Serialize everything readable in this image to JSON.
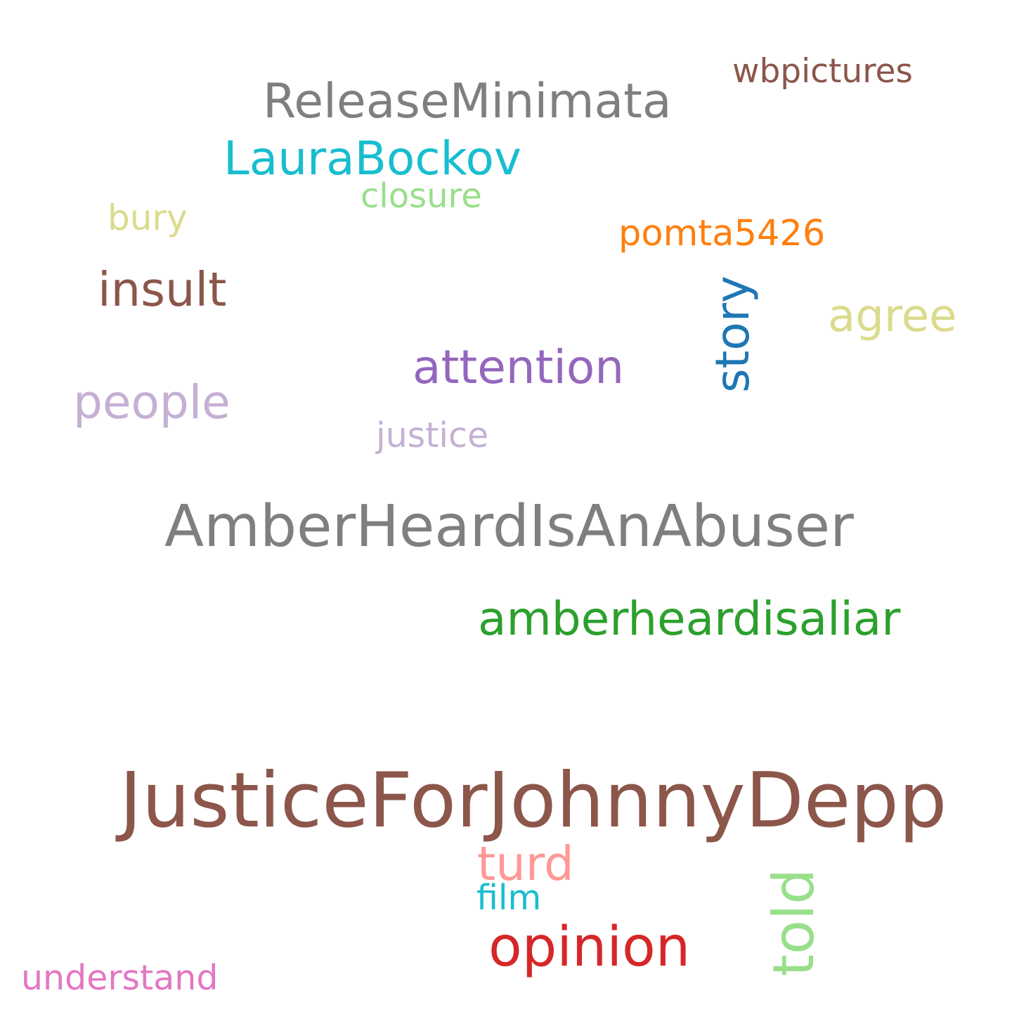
{
  "words": [
    {
      "text": "wbpictures",
      "color": "#8c564b"
    },
    {
      "text": "ReleaseMinimata",
      "color": "#7f7f7f"
    },
    {
      "text": "LauraBockov",
      "color": "#17becf"
    },
    {
      "text": "closure",
      "color": "#98df8a"
    },
    {
      "text": "bury",
      "color": "#dbdb8d"
    },
    {
      "text": "pomta5426",
      "color": "#ff7f0e"
    },
    {
      "text": "insult",
      "color": "#8c564b"
    },
    {
      "text": "story",
      "color": "#1f77b4"
    },
    {
      "text": "agree",
      "color": "#dbdb8d"
    },
    {
      "text": "attention",
      "color": "#9467bd"
    },
    {
      "text": "people",
      "color": "#c5b0d5"
    },
    {
      "text": "justice",
      "color": "#c5b0d5"
    },
    {
      "text": "AmberHeardIsAnAbuser",
      "color": "#7f7f7f"
    },
    {
      "text": "amberheardisaliar",
      "color": "#2ca02c"
    },
    {
      "text": "JusticeForJohnnyDepp",
      "color": "#8c564b"
    },
    {
      "text": "turd",
      "color": "#ff9896"
    },
    {
      "text": "film",
      "color": "#17becf"
    },
    {
      "text": "opinion",
      "color": "#d62728"
    },
    {
      "text": "told",
      "color": "#98df8a"
    },
    {
      "text": "understand",
      "color": "#e377c2"
    }
  ]
}
